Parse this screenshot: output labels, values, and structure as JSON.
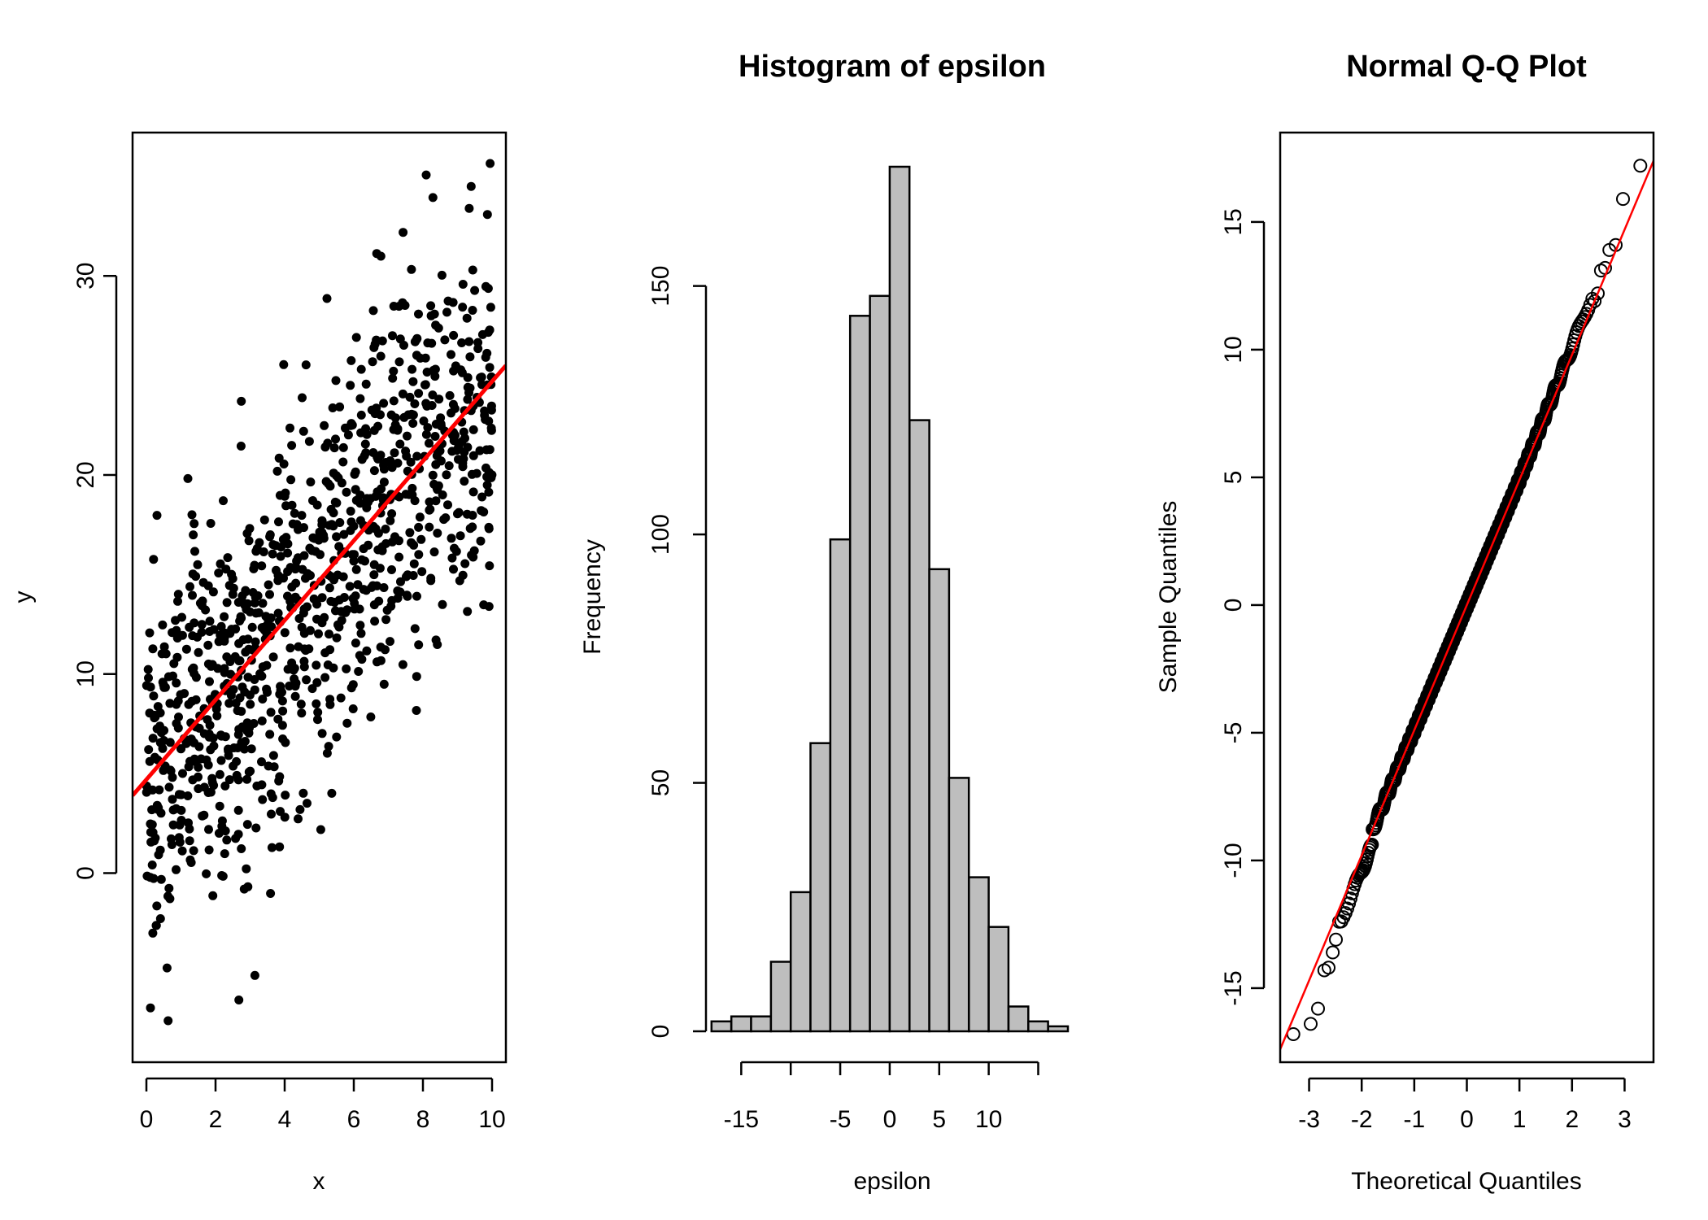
{
  "chart_data": [
    {
      "type": "scatter",
      "title": "",
      "xlabel": "x",
      "ylabel": "y",
      "xlim": [
        -0.4,
        10.4
      ],
      "ylim": [
        -9.5,
        37.2
      ],
      "xticks": [
        "0",
        "2",
        "4",
        "6",
        "8",
        "10"
      ],
      "yticks": [
        "0",
        "10",
        "20",
        "30"
      ],
      "n_points": 1000,
      "fit_line": {
        "intercept": 4.7,
        "slope": 2.0,
        "color": "#ff0000"
      },
      "point_color": "#000000"
    },
    {
      "type": "bar",
      "title": "Histogram of epsilon",
      "xlabel": "epsilon",
      "ylabel": "Frequency",
      "xticks": [
        "-15",
        "-5",
        "0",
        "5",
        "10"
      ],
      "yticks": [
        "0",
        "50",
        "100",
        "150"
      ],
      "ylim": [
        0,
        175
      ],
      "bin_width": 2,
      "bin_edges": [
        -18,
        -16,
        -14,
        -12,
        -10,
        -8,
        -6,
        -4,
        -2,
        0,
        2,
        4,
        6,
        8,
        10,
        12,
        14,
        16,
        18
      ],
      "values": [
        2,
        3,
        3,
        14,
        28,
        58,
        99,
        144,
        148,
        174,
        123,
        93,
        51,
        31,
        21,
        5,
        2,
        1
      ],
      "fill": "#bebebe"
    },
    {
      "type": "scatter",
      "title": "Normal Q-Q Plot",
      "xlabel": "Theoretical Quantiles",
      "ylabel": "Sample Quantiles",
      "xlim": [
        -3.55,
        3.55
      ],
      "ylim": [
        -17.9,
        18.5
      ],
      "xticks": [
        "-3",
        "-2",
        "-1",
        "0",
        "1",
        "2",
        "3"
      ],
      "yticks": [
        "-15",
        "-10",
        "-5",
        "0",
        "5",
        "10",
        "15"
      ],
      "qq_line": {
        "intercept": 0.0,
        "slope": 4.9,
        "color": "#ff0000"
      },
      "n_points": 1000,
      "tail_points_low": [
        [
          -3.3,
          -16.8
        ],
        [
          -2.97,
          -16.4
        ],
        [
          -2.83,
          -15.8
        ],
        [
          -2.71,
          -14.3
        ],
        [
          -2.63,
          -14.2
        ],
        [
          -2.55,
          -13.6
        ],
        [
          -2.49,
          -13.1
        ],
        [
          -2.43,
          -12.4
        ]
      ],
      "tail_points_high": [
        [
          3.3,
          17.2
        ],
        [
          2.97,
          15.9
        ],
        [
          2.83,
          14.1
        ],
        [
          2.71,
          13.9
        ],
        [
          2.63,
          13.2
        ],
        [
          2.55,
          13.1
        ],
        [
          2.49,
          12.2
        ],
        [
          2.43,
          11.9
        ]
      ]
    }
  ]
}
